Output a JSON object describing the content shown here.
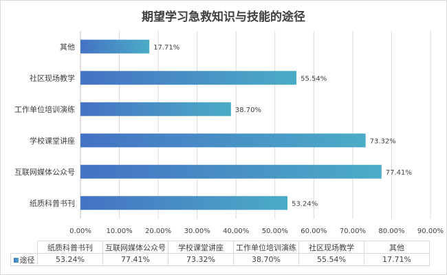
{
  "chart_data": {
    "type": "bar",
    "orientation": "horizontal",
    "title": "期望学习急救知识与技能的途径",
    "categories": [
      "纸质科普书刊",
      "互联网媒体公众号",
      "学校课堂讲座",
      "工作单位培训演练",
      "社区现场教学",
      "其他"
    ],
    "series": [
      {
        "name": "途径",
        "values": [
          53.24,
          77.41,
          73.32,
          38.7,
          55.54,
          17.71
        ],
        "labels": [
          "53.24%",
          "77.41%",
          "73.32%",
          "38.70%",
          "55.54%",
          "17.71%"
        ]
      }
    ],
    "xlim": [
      0,
      90
    ],
    "xticks": [
      "0.00%",
      "10.00%",
      "20.00%",
      "30.00%",
      "40.00%",
      "50.00%",
      "60.00%",
      "70.00%",
      "80.00%",
      "90.00%"
    ],
    "grid": true,
    "gradient": [
      "#4472c4",
      "#4bacc6"
    ]
  }
}
